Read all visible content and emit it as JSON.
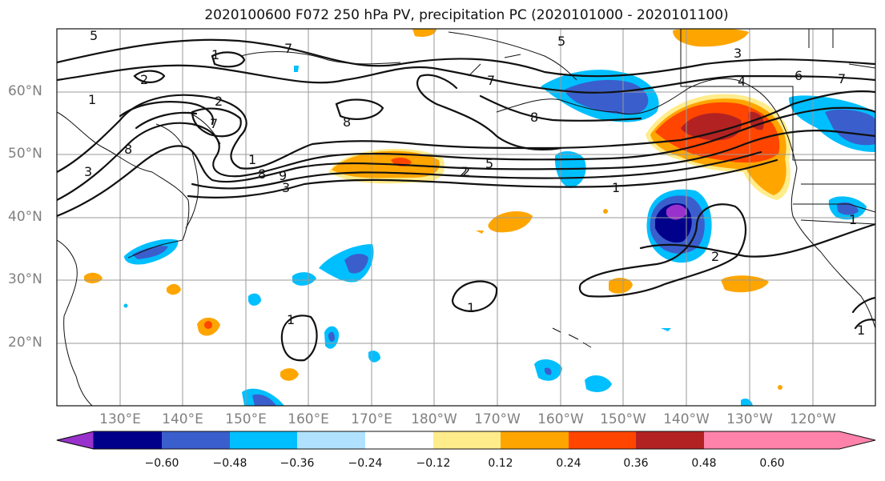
{
  "title": "2020100600 F072 250 hPa PV, precipitation PC (2020101000 - 2020101100)",
  "lat_labels": [
    "60°N",
    "50°N",
    "40°N",
    "30°N",
    "20°N"
  ],
  "lon_labels": [
    "130°E",
    "140°E",
    "150°E",
    "160°E",
    "170°E",
    "180°W",
    "170°W",
    "160°W",
    "150°W",
    "140°W",
    "130°W",
    "120°W"
  ],
  "colorbar": {
    "ticks": [
      "−0.60",
      "−0.48",
      "−0.36",
      "−0.24",
      "−0.12",
      "0.12",
      "0.24",
      "0.36",
      "0.48",
      "0.60"
    ],
    "colors": [
      "#9932CC",
      "#00008B",
      "#3A5FCD",
      "#00BFFF",
      "#B0E2FF",
      "#FFFFFF",
      "#FFEC8B",
      "#FFA500",
      "#FF4500",
      "#B22222",
      "#FF82AB"
    ]
  },
  "contour_labels": [
    "5",
    "1",
    "2",
    "7",
    "3",
    "8",
    "7",
    "2",
    "1",
    "8",
    "9",
    "1",
    "3",
    "8",
    "7",
    "8",
    "2",
    "5",
    "1",
    "5",
    "4",
    "6",
    "7",
    "2",
    "1",
    "1",
    "1",
    "1",
    "2",
    "3"
  ]
}
